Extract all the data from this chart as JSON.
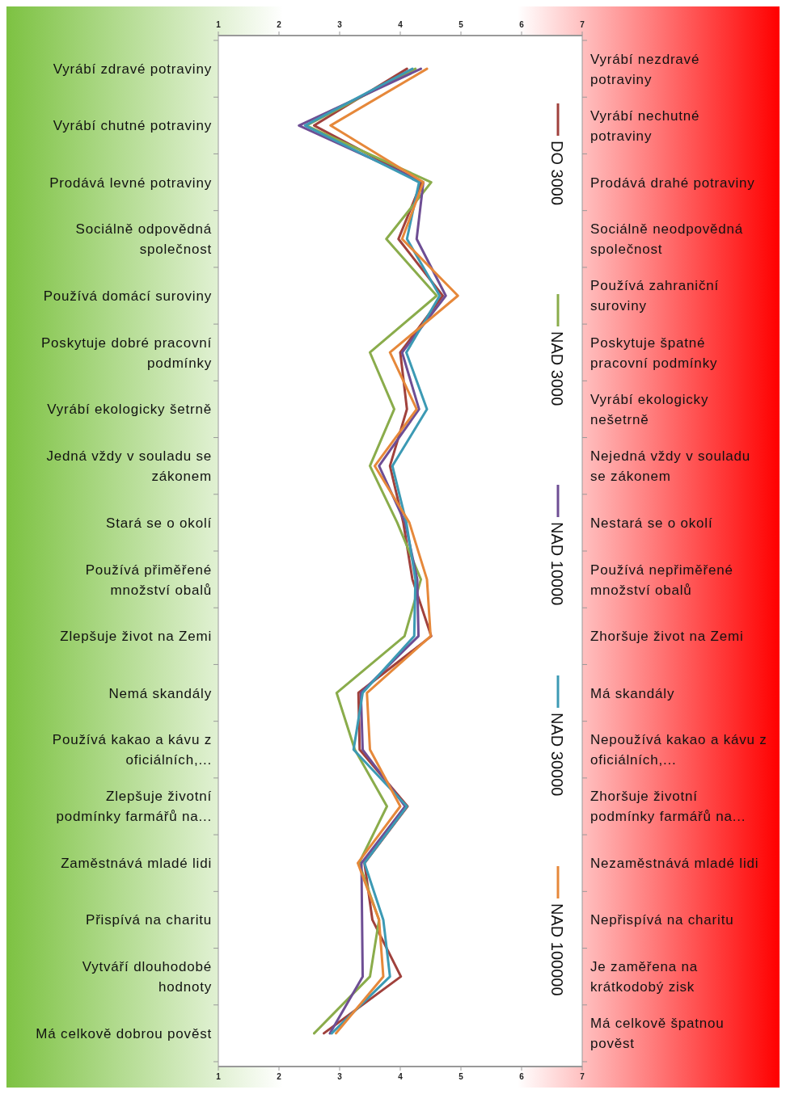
{
  "chart_data": {
    "type": "line",
    "orientation": "horizontal",
    "categories": [
      "Vyrábí zdravé potraviny",
      "Vyrábí chutné potraviny",
      "Prodává levné potraviny",
      "Sociálně odpovědná společnost",
      "Používá domácí suroviny",
      "Poskytuje dobré pracovní podmínky",
      "Vyrábí ekologicky šetrně",
      "Jedná vždy v souladu se zákonem",
      "Stará se o okolí",
      "Používá přiměřené množství obalů",
      "Zlepšuje život na Zemi",
      "Nemá skandály",
      "Používá kakao a kávu z oficiálních,...",
      "Zlepšuje životní podmínky farmářů na...",
      "Zaměstnává mladé lidi",
      "Přispívá na charitu",
      "Vytváří dlouhodobé hodnoty",
      "Má celkově dobrou pověst"
    ],
    "y2_categories": [
      "Vyrábí nezdravé potraviny",
      "Vyrábí nechutné potraviny",
      "Prodává drahé potraviny",
      "Sociálně neodpovědná společnost",
      "Používá zahraniční suroviny",
      "Poskytuje špatné pracovní podmínky",
      "Vyrábí ekologicky nešetrně",
      "Nejedná vždy v souladu se zákonem",
      "Nestará se o okolí",
      "Používá nepřiměřené množství obalů",
      "Zhoršuje život na Zemi",
      "Má skandály",
      "Nepoužívá kakao a kávu z oficiálních,...",
      "Zhoršuje životní podmínky farmářů na...",
      "Nezaměstnává mladé lidi",
      "Nepřispívá na charitu",
      "Je zaměřena na krátkodobý zisk",
      "Má celkově špatnou pověst"
    ],
    "xlim": [
      1,
      7
    ],
    "xticks": [
      1,
      2,
      3,
      4,
      5,
      6,
      7
    ],
    "x2lim": [
      1,
      7
    ],
    "x2ticks": [
      1,
      2,
      3,
      4,
      5,
      6,
      7
    ],
    "legend": "right",
    "grid": false,
    "series": [
      {
        "name": "DO 3000",
        "color": "#a0413c",
        "values": [
          4.11,
          2.58,
          4.35,
          3.97,
          4.7,
          4.0,
          4.11,
          3.83,
          4.05,
          4.2,
          4.51,
          3.31,
          3.33,
          4.12,
          3.41,
          3.54,
          4.01,
          2.74
        ]
      },
      {
        "name": "NAD 3000",
        "color": "#8aac4b",
        "values": [
          4.25,
          2.45,
          4.51,
          3.77,
          4.6,
          3.5,
          3.9,
          3.5,
          3.95,
          4.34,
          4.07,
          2.95,
          3.25,
          3.78,
          3.32,
          3.65,
          3.5,
          2.58
        ]
      },
      {
        "name": "NAD 10000",
        "color": "#6e4e94",
        "values": [
          4.34,
          2.33,
          4.38,
          4.27,
          4.75,
          4.03,
          4.31,
          3.65,
          4.08,
          4.28,
          4.3,
          3.35,
          3.38,
          4.08,
          3.36,
          3.37,
          3.38,
          2.84
        ]
      },
      {
        "name": "NAD 30000",
        "color": "#3c9ab4",
        "values": [
          4.2,
          2.43,
          4.31,
          4.11,
          4.65,
          4.1,
          4.44,
          3.87,
          4.1,
          4.25,
          4.23,
          3.38,
          3.23,
          4.11,
          3.41,
          3.72,
          3.83,
          2.87
        ]
      },
      {
        "name": "NAD 100000",
        "color": "#e6883a",
        "values": [
          4.44,
          2.85,
          4.38,
          4.03,
          4.95,
          3.83,
          4.27,
          3.58,
          4.15,
          4.44,
          4.5,
          3.45,
          3.5,
          4.0,
          3.3,
          3.65,
          3.72,
          2.94
        ]
      }
    ]
  }
}
